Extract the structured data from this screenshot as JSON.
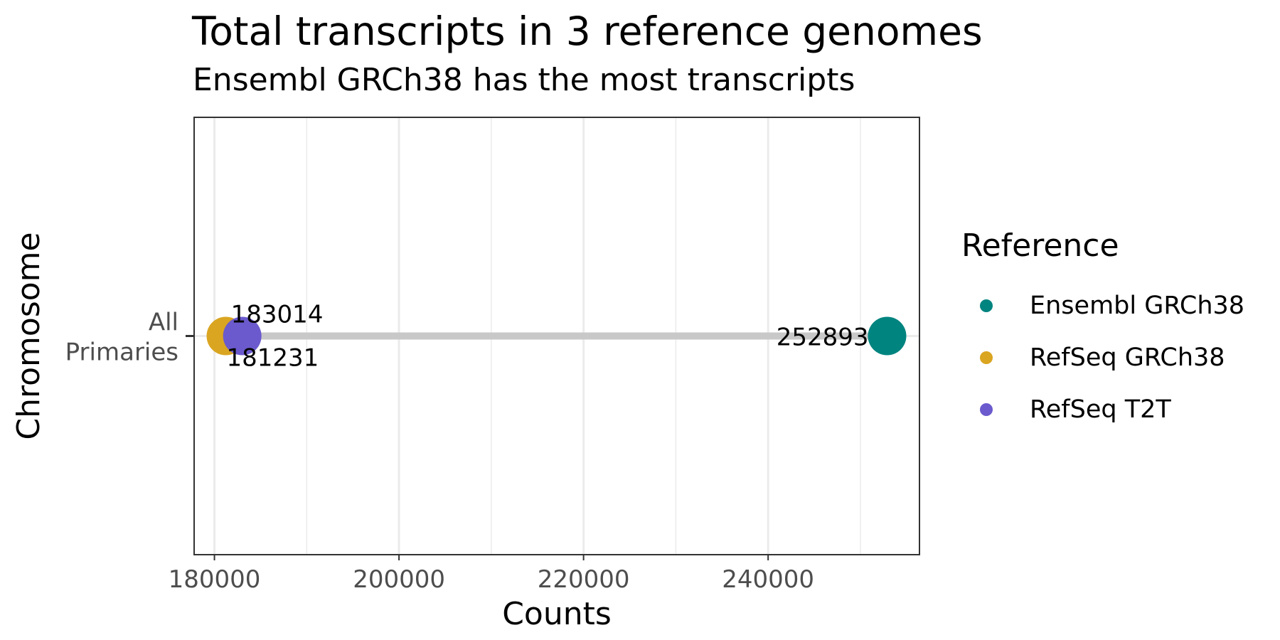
{
  "chart_data": {
    "type": "scatter",
    "title": "Total transcripts in 3 reference genomes",
    "subtitle": "Ensembl GRCh38 has the most transcripts",
    "xlabel": "Counts",
    "ylabel": "Chromosome",
    "xlim": [
      177800,
      256400
    ],
    "xticks": [
      180000,
      200000,
      220000,
      240000
    ],
    "xtick_labels": [
      "180000",
      "200000",
      "220000",
      "240000"
    ],
    "categories": [
      "All Primaries"
    ],
    "category_labels": [
      [
        "All",
        "Primaries"
      ]
    ],
    "grid": true,
    "legend": {
      "title": "Reference",
      "placement": "right"
    },
    "series": [
      {
        "name": "Ensembl GRCh38",
        "color": "#00847f",
        "values": [
          252893
        ],
        "label": "252893"
      },
      {
        "name": "RefSeq GRCh38",
        "color": "#daa520",
        "values": [
          181231
        ],
        "label": "181231"
      },
      {
        "name": "RefSeq T2T",
        "color": "#6a5acd",
        "values": [
          183014
        ],
        "label": "183014"
      }
    ]
  }
}
